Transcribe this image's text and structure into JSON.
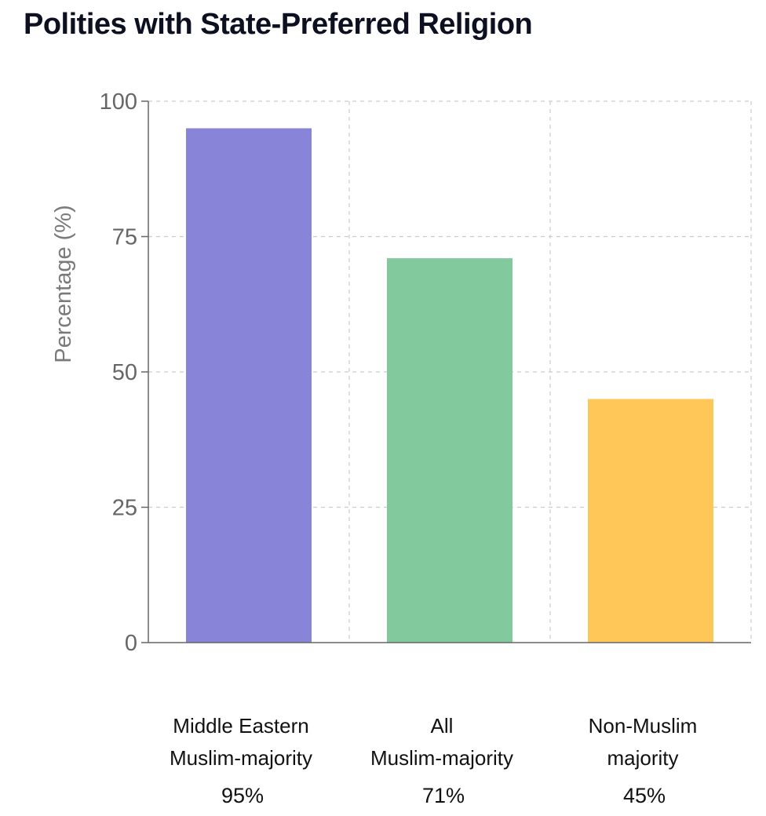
{
  "chart_data": {
    "type": "bar",
    "title": "Polities with State-Preferred Religion",
    "ylabel": "Percentage (%)",
    "xlabel": "",
    "categories": [
      [
        "Middle Eastern",
        "Muslim-majority"
      ],
      [
        "All",
        "Muslim-majority"
      ],
      [
        "Non-Muslim",
        "majority"
      ]
    ],
    "values": [
      95,
      71,
      45
    ],
    "value_labels": [
      "95%",
      "71%",
      "45%"
    ],
    "colors": [
      "#8884d8",
      "#82ca9d",
      "#ffc658"
    ],
    "ylim": [
      0,
      100
    ],
    "yticks": [
      "0",
      "25",
      "50",
      "75",
      "100"
    ],
    "grid": true,
    "legend": "none"
  }
}
